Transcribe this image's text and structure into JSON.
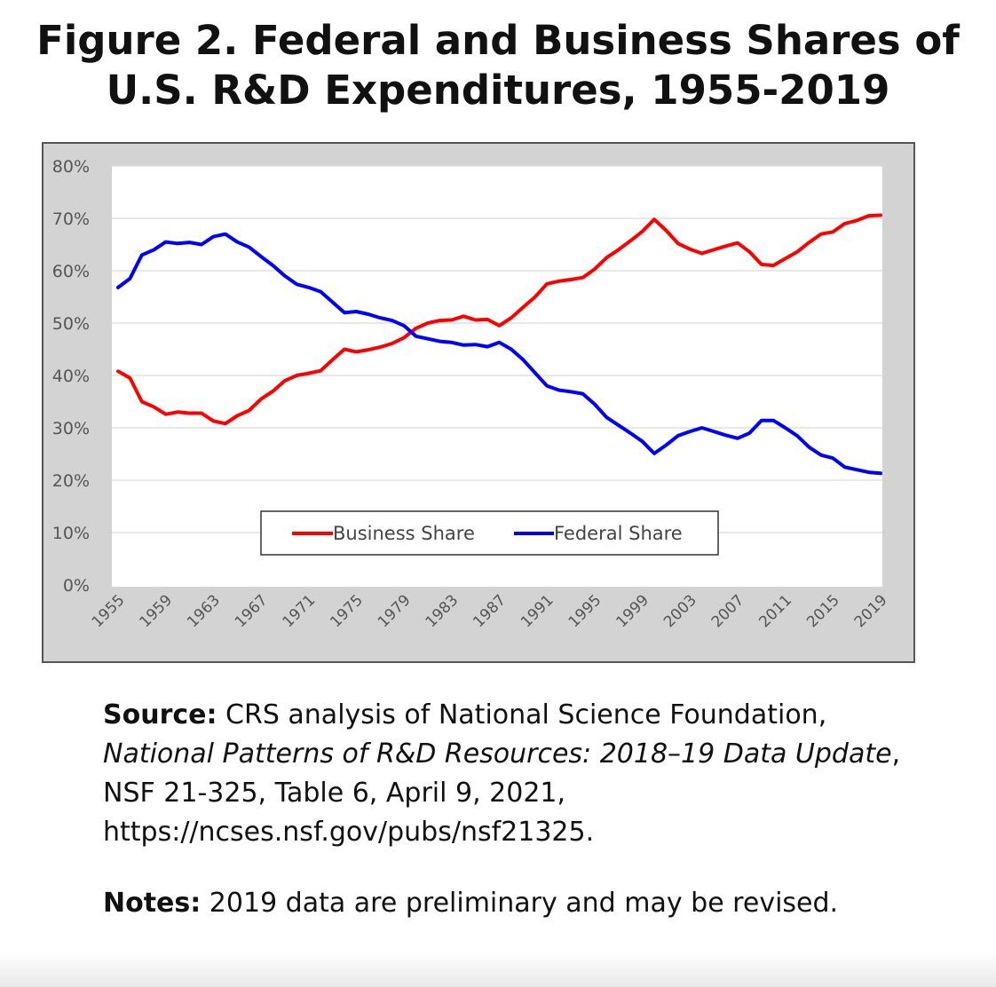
{
  "figure": {
    "title": "Figure 2. Federal and Business Shares of U.S. R&D Expenditures, 1955-2019"
  },
  "chart_data": {
    "type": "line",
    "title": "",
    "xlabel": "",
    "ylabel": "",
    "ylim": [
      0,
      80
    ],
    "xlim": [
      1955,
      2019
    ],
    "y_ticks": [
      "0%",
      "10%",
      "20%",
      "30%",
      "40%",
      "50%",
      "60%",
      "70%",
      "80%"
    ],
    "x_tick_labels": [
      "1955",
      "1959",
      "1963",
      "1967",
      "1971",
      "1975",
      "1979",
      "1983",
      "1987",
      "1991",
      "1995",
      "1999",
      "2003",
      "2007",
      "2011",
      "2015",
      "2019"
    ],
    "grid": true,
    "legend_position": "bottom-center",
    "x": [
      1955,
      1956,
      1957,
      1958,
      1959,
      1960,
      1961,
      1962,
      1963,
      1964,
      1965,
      1966,
      1967,
      1968,
      1969,
      1970,
      1971,
      1972,
      1973,
      1974,
      1975,
      1976,
      1977,
      1978,
      1979,
      1980,
      1981,
      1982,
      1983,
      1984,
      1985,
      1986,
      1987,
      1988,
      1989,
      1990,
      1991,
      1992,
      1993,
      1994,
      1995,
      1996,
      1997,
      1998,
      1999,
      2000,
      2001,
      2002,
      2003,
      2004,
      2005,
      2006,
      2007,
      2008,
      2009,
      2010,
      2011,
      2012,
      2013,
      2014,
      2015,
      2016,
      2017,
      2018,
      2019
    ],
    "series": [
      {
        "name": "Business Share",
        "color": "#ff0000",
        "values": [
          40.8,
          39.5,
          35.0,
          34.0,
          32.6,
          33.0,
          32.8,
          32.8,
          31.3,
          30.8,
          32.3,
          33.3,
          35.5,
          37.0,
          39.0,
          40.0,
          40.4,
          40.9,
          43.0,
          45.0,
          44.5,
          44.9,
          45.4,
          46.1,
          47.2,
          49.0,
          50.0,
          50.5,
          50.6,
          51.3,
          50.6,
          50.7,
          49.5,
          51.0,
          53.0,
          55.0,
          57.5,
          58.0,
          58.3,
          58.7,
          60.3,
          62.5,
          64.0,
          65.7,
          67.5,
          69.8,
          67.7,
          65.2,
          64.1,
          63.3,
          64.0,
          64.7,
          65.3,
          63.6,
          61.2,
          61.0,
          62.3,
          63.6,
          65.4,
          67.0,
          67.4,
          69.0,
          69.6,
          70.5,
          70.6
        ]
      },
      {
        "name": "Federal Share",
        "color": "#0000ff",
        "values": [
          56.8,
          58.5,
          63.0,
          64.0,
          65.5,
          65.2,
          65.4,
          65.0,
          66.5,
          67.0,
          65.5,
          64.5,
          62.7,
          61.0,
          59.0,
          57.4,
          56.8,
          56.0,
          54.0,
          52.0,
          52.2,
          51.7,
          51.0,
          50.5,
          49.5,
          47.5,
          47.0,
          46.5,
          46.3,
          45.8,
          45.9,
          45.5,
          46.3,
          45.0,
          43.0,
          40.5,
          38.0,
          37.2,
          36.9,
          36.5,
          34.5,
          32.0,
          30.5,
          29.0,
          27.4,
          25.1,
          26.7,
          28.5,
          29.3,
          30.0,
          29.3,
          28.6,
          28.0,
          29.0,
          31.4,
          31.4,
          30.0,
          28.5,
          26.3,
          24.8,
          24.2,
          22.5,
          22.0,
          21.5,
          21.3
        ]
      }
    ]
  },
  "caption": {
    "source_label": "Source:",
    "source_text_1": " CRS analysis of National Science Foundation, ",
    "source_italic": "National Patterns  of R&D Resources: 2018–19 Data Update",
    "source_text_2": ",  NSF 21-325, Table 6, April  9, 2021, https://ncses.nsf.gov/pubs/nsf21325.",
    "notes_label": "Notes:",
    "notes_text": " 2019 data are  preliminary  and may  be revised."
  }
}
